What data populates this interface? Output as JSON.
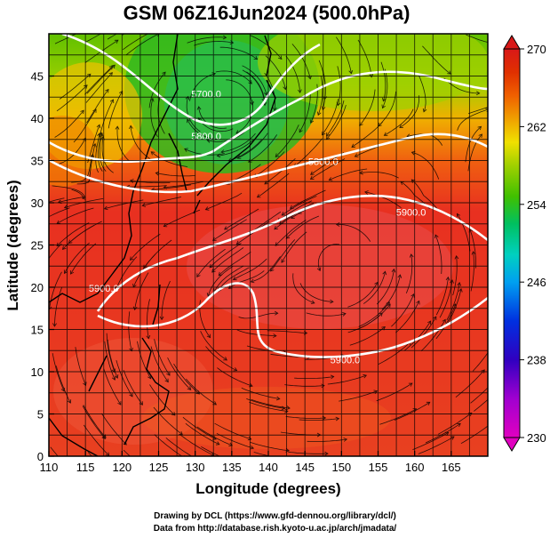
{
  "title": "GSM 06Z16Jun2024 (500.0hPa)",
  "xlabel": "Longitude (degrees)",
  "ylabel": "Latitude  (degrees)",
  "credits": [
    "Drawing by DCL (https://www.gfd-dennou.org/library/dcl/)",
    "Data from http://database.rish.kyoto-u.ac.jp/arch/jmadata/"
  ],
  "map": {
    "lon_range": [
      110,
      170
    ],
    "lat_range": [
      0,
      50
    ],
    "lon_ticks": [
      110,
      115,
      120,
      125,
      130,
      135,
      140,
      145,
      150,
      155,
      160,
      165
    ],
    "lat_ticks": [
      0,
      5,
      10,
      15,
      20,
      25,
      30,
      35,
      40,
      45
    ]
  },
  "colorbar": {
    "ticks": [
      230,
      238,
      246,
      254,
      262,
      270
    ],
    "range": [
      230,
      270
    ],
    "colors": [
      "#e000c0",
      "#a000d0",
      "#3000c0",
      "#0030e0",
      "#00a0f0",
      "#00d0c0",
      "#00c060",
      "#40c000",
      "#a0d000",
      "#f0e000",
      "#f0a000",
      "#f06000",
      "#e03000",
      "#d81818"
    ]
  },
  "contours": [
    {
      "label": "5700.0",
      "lon": 131.5,
      "lat": 42.5
    },
    {
      "label": "5800.0",
      "lon": 131.5,
      "lat": 37.5
    },
    {
      "label": "5800.0",
      "lon": 147.5,
      "lat": 34.5
    },
    {
      "label": "5900.0",
      "lon": 159.5,
      "lat": 28.5
    },
    {
      "label": "5900.0",
      "lon": 117.5,
      "lat": 19.5
    },
    {
      "label": "5900.0",
      "lon": 150.5,
      "lat": 11.0
    }
  ]
}
